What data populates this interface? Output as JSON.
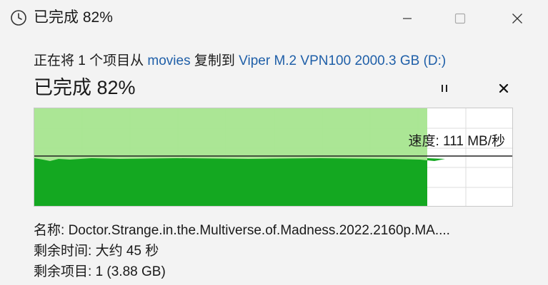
{
  "window": {
    "title": "已完成 82%",
    "icon": "clock-icon"
  },
  "titlebar_buttons": [
    "minimize-icon",
    "maximize-icon",
    "close-icon"
  ],
  "summary": {
    "prefix": "正在将 1 个项目从 ",
    "source": "movies",
    "middle": " 复制到 ",
    "destination": "Viper M.2 VPN100 2000.3 GB (D:)"
  },
  "status": {
    "text": "已完成 82%",
    "progress_fraction": 0.82
  },
  "controls": {
    "pause_icon": "pause-icon",
    "cancel_icon": "cancel-icon"
  },
  "graph": {
    "speed_text": "速度: 111 MB/秒",
    "colors": {
      "completed_area": "#a6e58f",
      "throughput_area": "#14a821",
      "speed_line": "#222222",
      "grid": "#dcdcdc"
    }
  },
  "details": {
    "name_label": "名称: ",
    "name_value": "Doctor.Strange.in.the.Multiverse.of.Madness.2022.2160p.MA....",
    "time_label": "剩余时间: ",
    "time_value": "大约 45 秒",
    "items_label": "剩余项目: ",
    "items_value": "1 (3.88 GB)"
  }
}
